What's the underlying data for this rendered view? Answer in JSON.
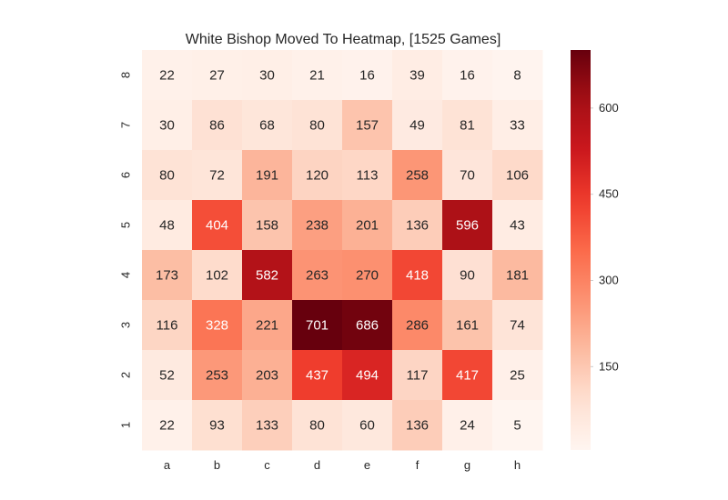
{
  "chart_data": {
    "type": "heatmap",
    "title": "White Bishop Moved To Heatmap,  [1525 Games]",
    "xlabel": "",
    "ylabel": "",
    "x_categories": [
      "a",
      "b",
      "c",
      "d",
      "e",
      "f",
      "g",
      "h"
    ],
    "y_categories": [
      "8",
      "7",
      "6",
      "5",
      "4",
      "3",
      "2",
      "1"
    ],
    "values": [
      [
        22,
        27,
        30,
        21,
        16,
        39,
        16,
        8
      ],
      [
        30,
        86,
        68,
        80,
        157,
        49,
        81,
        33
      ],
      [
        80,
        72,
        191,
        120,
        113,
        258,
        70,
        106
      ],
      [
        48,
        404,
        158,
        238,
        201,
        136,
        596,
        43
      ],
      [
        173,
        102,
        582,
        263,
        270,
        418,
        90,
        181
      ],
      [
        116,
        328,
        221,
        701,
        686,
        286,
        161,
        74
      ],
      [
        52,
        253,
        203,
        437,
        494,
        117,
        417,
        25
      ],
      [
        22,
        93,
        133,
        80,
        60,
        136,
        24,
        5
      ]
    ],
    "colormap": "Reds",
    "color_range": [
      5,
      701
    ],
    "colorbar_ticks": [
      150,
      300,
      450,
      600
    ],
    "colorbar_position": "right",
    "grid": false,
    "annotated": true
  }
}
